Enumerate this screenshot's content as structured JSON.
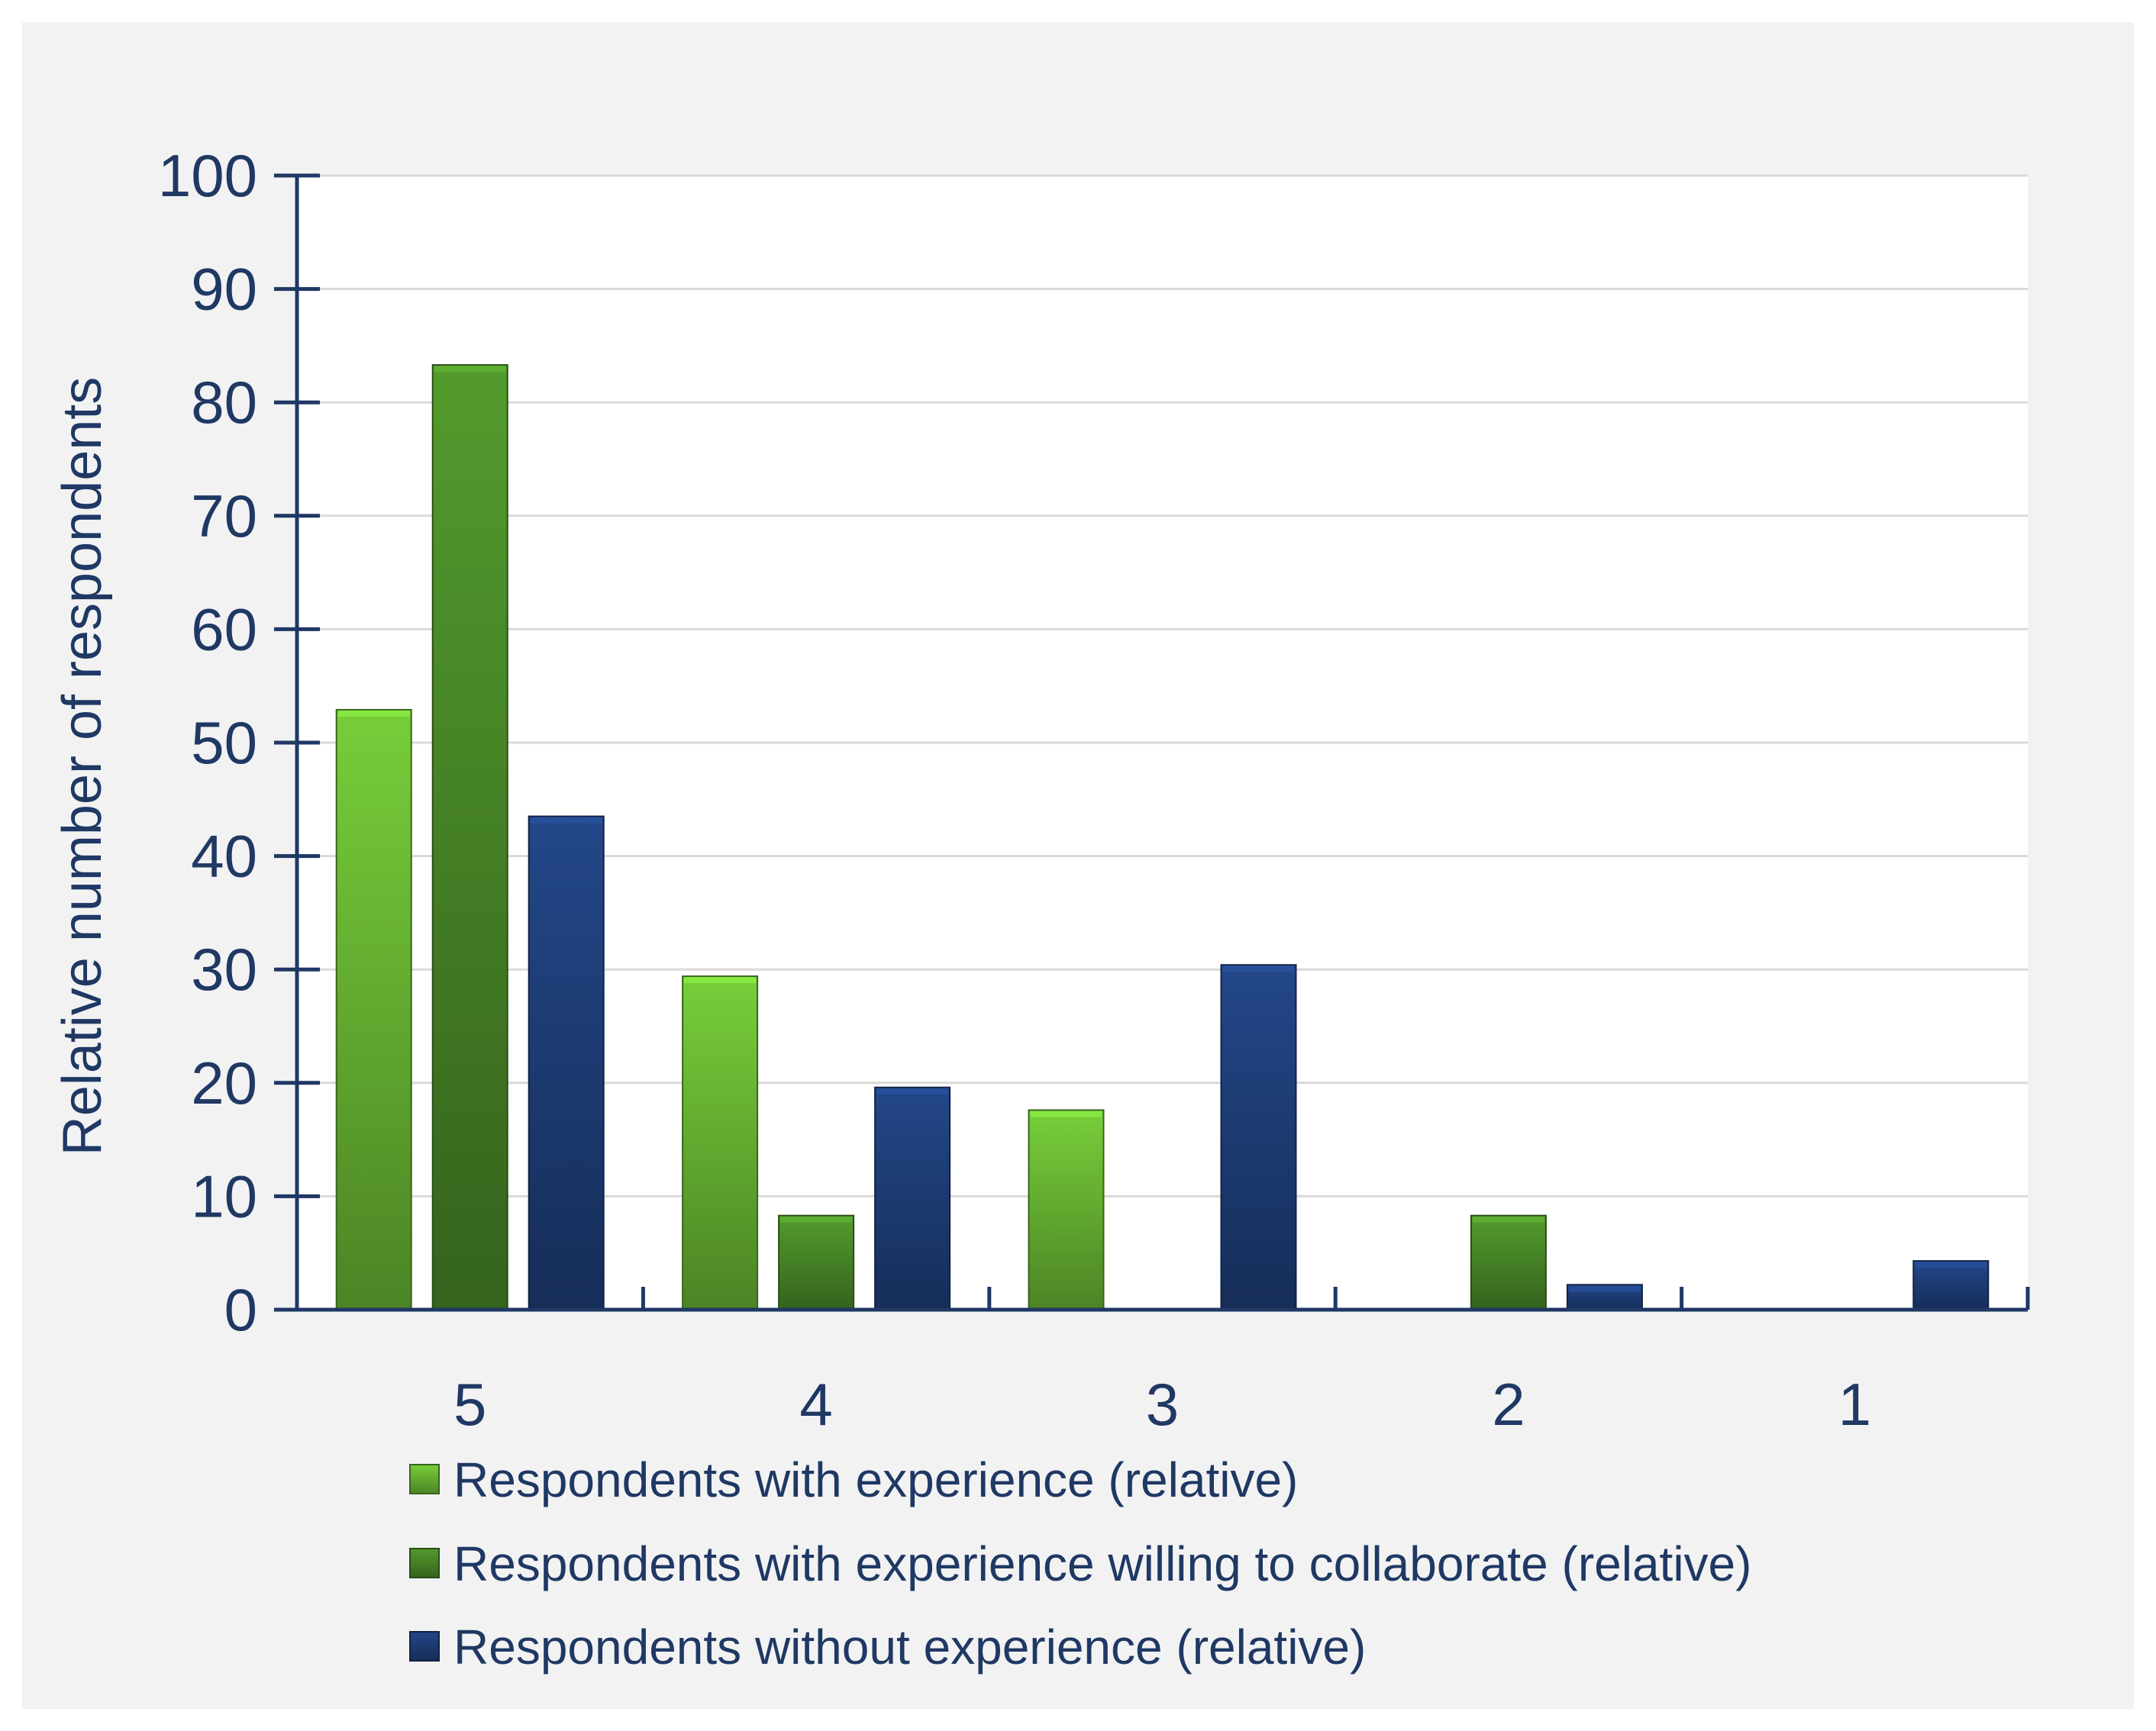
{
  "chart_data": {
    "type": "bar",
    "categories": [
      "5",
      "4",
      "3",
      "2",
      "1"
    ],
    "series": [
      {
        "name": "Respondents with experience (relative)",
        "values": [
          52.9,
          29.4,
          17.6,
          0,
          0
        ],
        "color": "#6ab834"
      },
      {
        "name": "Respondents with experience willing to collaborate (relative)",
        "values": [
          83.3,
          8.3,
          0,
          8.3,
          0
        ],
        "color": "#4a8a28"
      },
      {
        "name": "Respondents without experience (relative)",
        "values": [
          43.5,
          19.6,
          30.4,
          2.2,
          4.3
        ],
        "color": "#1f3f7a"
      }
    ],
    "title": "",
    "xlabel": "",
    "ylabel": "Relative number of respondents",
    "ylim": [
      0,
      100
    ],
    "yticks": [
      "0",
      "10",
      "20",
      "30",
      "40",
      "50",
      "60",
      "70",
      "80",
      "90",
      "100"
    ],
    "grid": true,
    "legend_position": "bottom"
  },
  "colors": {
    "text": "#1f3864",
    "axis": "#1f3864",
    "grid": "#d9d9d9",
    "panel_background": "#f2f2f2",
    "plot_background": "#ffffff"
  }
}
